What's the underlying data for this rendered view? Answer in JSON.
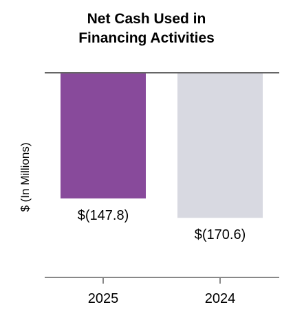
{
  "chart_data": {
    "type": "bar",
    "title_lines": [
      "Net Cash Used in",
      "Financing Activities"
    ],
    "ylabel": "$ (In Millions)",
    "categories": [
      "2025",
      "2024"
    ],
    "values": [
      -147.8,
      -170.6
    ],
    "data_labels": [
      "$(147.8)",
      "$(170.6)"
    ],
    "colors": [
      "#884a9b",
      "#d8d9e1"
    ],
    "ylim": [
      -240,
      0
    ]
  }
}
